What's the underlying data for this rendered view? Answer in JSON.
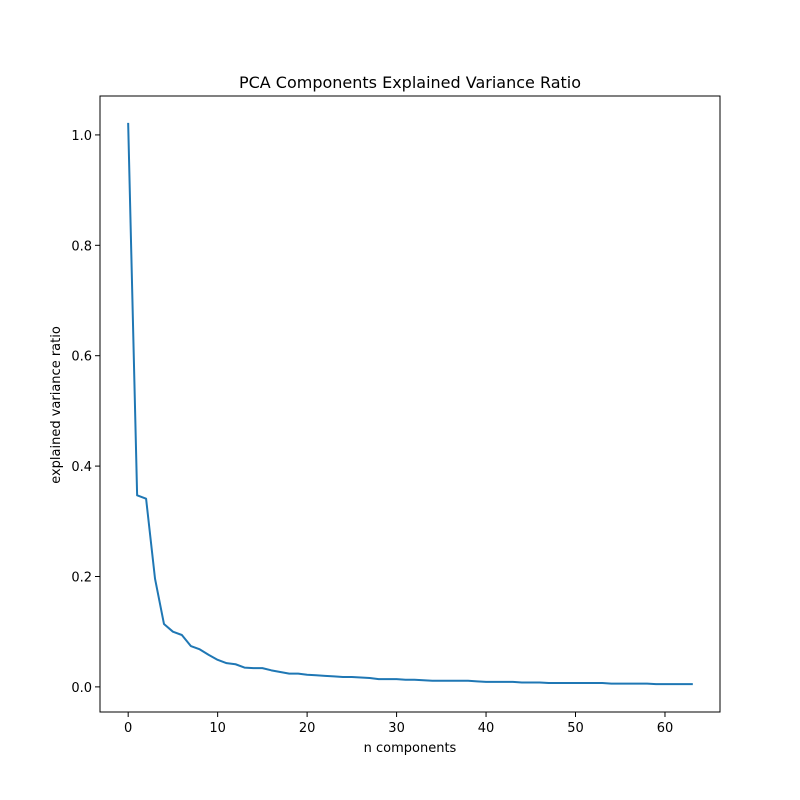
{
  "chart_data": {
    "type": "line",
    "title": "PCA Components Explained Variance Ratio",
    "xlabel": "n components",
    "ylabel": "explained variance ratio",
    "xlim": [
      -3.15,
      66.15
    ],
    "ylim": [
      -0.0455,
      1.0705
    ],
    "x_ticks": [
      0,
      10,
      20,
      30,
      40,
      50,
      60
    ],
    "x_tick_labels": [
      "0",
      "10",
      "20",
      "30",
      "40",
      "50",
      "60"
    ],
    "y_ticks": [
      0.0,
      0.2,
      0.4,
      0.6,
      0.8,
      1.0
    ],
    "y_tick_labels": [
      "0.0",
      "0.2",
      "0.4",
      "0.6",
      "0.8",
      "1.0"
    ],
    "grid": false,
    "series": [
      {
        "color": "#1f77b4",
        "x": [
          0,
          1,
          2,
          3,
          4,
          5,
          6,
          7,
          8,
          9,
          10,
          11,
          12,
          13,
          14,
          15,
          16,
          17,
          18,
          19,
          20,
          21,
          22,
          23,
          24,
          25,
          26,
          27,
          28,
          29,
          30,
          31,
          32,
          33,
          34,
          35,
          36,
          37,
          38,
          39,
          40,
          41,
          42,
          43,
          44,
          45,
          46,
          47,
          48,
          49,
          50,
          51,
          52,
          53,
          54,
          55,
          56,
          57,
          58,
          59,
          60,
          61,
          62,
          63
        ],
        "values": [
          1.02,
          0.347,
          0.341,
          0.196,
          0.114,
          0.1,
          0.094,
          0.074,
          0.068,
          0.058,
          0.049,
          0.043,
          0.041,
          0.035,
          0.034,
          0.034,
          0.03,
          0.027,
          0.024,
          0.024,
          0.022,
          0.021,
          0.02,
          0.019,
          0.018,
          0.018,
          0.017,
          0.016,
          0.014,
          0.014,
          0.014,
          0.013,
          0.013,
          0.012,
          0.011,
          0.011,
          0.011,
          0.011,
          0.011,
          0.01,
          0.009,
          0.009,
          0.009,
          0.009,
          0.008,
          0.008,
          0.008,
          0.007,
          0.007,
          0.007,
          0.007,
          0.007,
          0.007,
          0.007,
          0.006,
          0.006,
          0.006,
          0.006,
          0.006,
          0.005,
          0.005,
          0.005,
          0.005,
          0.005
        ]
      }
    ]
  }
}
